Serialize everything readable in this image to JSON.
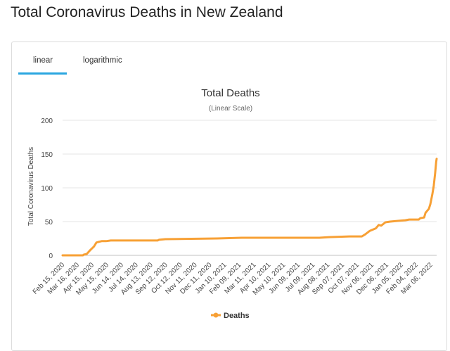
{
  "page": {
    "title": "Total Coronavirus Deaths in New Zealand"
  },
  "tabs": [
    {
      "label": "linear",
      "active": true
    },
    {
      "label": "logarithmic",
      "active": false
    }
  ],
  "colors": {
    "accent": "#2aa6e0",
    "series": "#f7a035",
    "grid": "#e6e6e6"
  },
  "chart_data": {
    "type": "line",
    "title": "Total Deaths",
    "subtitle": "(Linear Scale)",
    "xlabel": "",
    "ylabel": "Total Coronavirus Deaths",
    "ylim": [
      0,
      200
    ],
    "yticks": [
      0,
      50,
      100,
      150,
      200
    ],
    "grid": true,
    "legend": "bottom-center",
    "x_tick_labels": [
      "Feb 15, 2020",
      "Mar 16, 2020",
      "Apr 15, 2020",
      "May 15, 2020",
      "Jun 14, 2020",
      "Jul 14, 2020",
      "Aug 13, 2020",
      "Sep 12, 2020",
      "Oct 12, 2020",
      "Nov 11, 2020",
      "Dec 11, 2020",
      "Jan 10, 2021",
      "Feb 09, 2021",
      "Mar 11, 2021",
      "Apr 10, 2021",
      "May 10, 2021",
      "Jun 09, 2021",
      "Jul 09, 2021",
      "Aug 08, 2021",
      "Sep 07, 2021",
      "Oct 07, 2021",
      "Nov 06, 2021",
      "Dec 06, 2021",
      "Jan 05, 2022",
      "Feb 04, 2022",
      "Mar 06, 2022"
    ],
    "series": [
      {
        "name": "Deaths",
        "color": "#f7a035",
        "points": [
          [
            "2020-02-15",
            0
          ],
          [
            "2020-03-28",
            0
          ],
          [
            "2020-03-30",
            1
          ],
          [
            "2020-04-05",
            2
          ],
          [
            "2020-04-10",
            6
          ],
          [
            "2020-04-14",
            9
          ],
          [
            "2020-04-17",
            11
          ],
          [
            "2020-04-20",
            13
          ],
          [
            "2020-04-25",
            19
          ],
          [
            "2020-04-30",
            20
          ],
          [
            "2020-05-06",
            21
          ],
          [
            "2020-05-15",
            21
          ],
          [
            "2020-05-25",
            22
          ],
          [
            "2020-08-30",
            22
          ],
          [
            "2020-09-02",
            23
          ],
          [
            "2020-09-15",
            24
          ],
          [
            "2020-12-31",
            25
          ],
          [
            "2021-02-20",
            26
          ],
          [
            "2021-07-31",
            26
          ],
          [
            "2021-08-20",
            27
          ],
          [
            "2021-10-01",
            28
          ],
          [
            "2021-10-27",
            28
          ],
          [
            "2021-11-03",
            31
          ],
          [
            "2021-11-12",
            36
          ],
          [
            "2021-11-25",
            40
          ],
          [
            "2021-12-01",
            45
          ],
          [
            "2021-12-06",
            44
          ],
          [
            "2021-12-15",
            49
          ],
          [
            "2021-12-25",
            50
          ],
          [
            "2022-01-10",
            51
          ],
          [
            "2022-01-25",
            52
          ],
          [
            "2022-02-02",
            53
          ],
          [
            "2022-02-22",
            53
          ],
          [
            "2022-02-25",
            55
          ],
          [
            "2022-03-05",
            56
          ],
          [
            "2022-03-08",
            63
          ],
          [
            "2022-03-15",
            69
          ],
          [
            "2022-03-18",
            76
          ],
          [
            "2022-03-22",
            90
          ],
          [
            "2022-03-25",
            103
          ],
          [
            "2022-03-28",
            122
          ],
          [
            "2022-03-30",
            138
          ],
          [
            "2022-03-31",
            143
          ]
        ]
      }
    ]
  }
}
